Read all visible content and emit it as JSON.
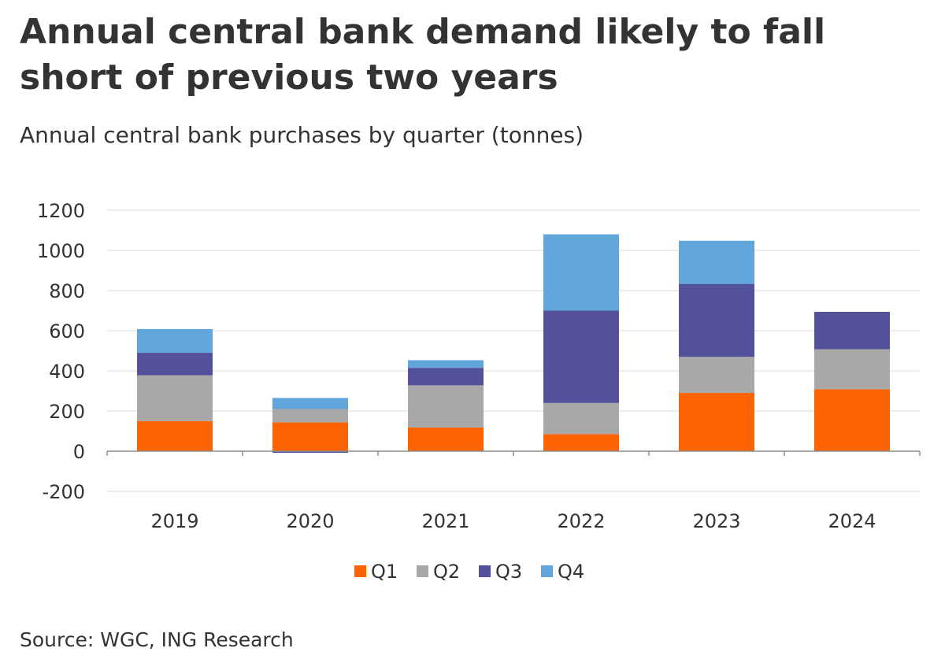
{
  "title": "Annual central bank demand likely to fall short of previous two years",
  "subtitle": "Annual central bank purchases by quarter (tonnes)",
  "source": "Source: WGC, ING Research",
  "chart_data": {
    "type": "bar",
    "stacked": true,
    "categories": [
      "2019",
      "2020",
      "2021",
      "2022",
      "2023",
      "2024"
    ],
    "series": [
      {
        "name": "Q1",
        "color": "#ff6200",
        "values": [
          150,
          143,
          118,
          85,
          290,
          308
        ]
      },
      {
        "name": "Q2",
        "color": "#a8a8a8",
        "values": [
          228,
          67,
          210,
          155,
          180,
          200
        ]
      },
      {
        "name": "Q3",
        "color": "#525199",
        "values": [
          112,
          -8,
          87,
          460,
          363,
          186
        ]
      },
      {
        "name": "Q4",
        "color": "#60a6da",
        "values": [
          118,
          55,
          38,
          380,
          215,
          0
        ]
      }
    ],
    "ylim": [
      -200,
      1200
    ],
    "yticks": [
      -200,
      0,
      200,
      400,
      600,
      800,
      1000,
      1200
    ],
    "grid": true,
    "legend": "bottom-center"
  }
}
